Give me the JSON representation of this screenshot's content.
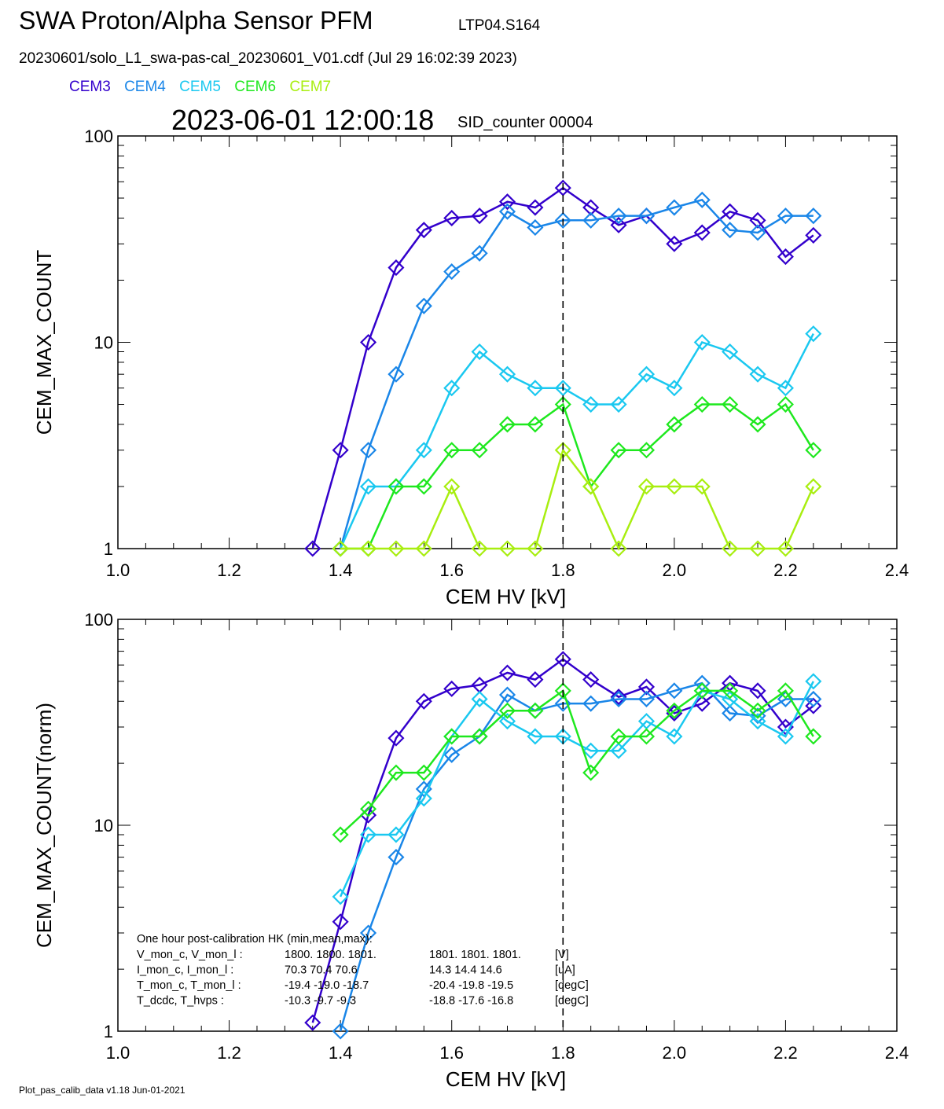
{
  "header": {
    "title": "SWA Proton/Alpha Sensor PFM",
    "limit": "LTP04.S164",
    "file": "20230601/solo_L1_swa-pas-cal_20230601_V01.cdf  (Jul 29 16:02:39 2023)",
    "time": "2023-06-01 12:00:18",
    "sid": "SID_counter 00004"
  },
  "legend": [
    {
      "name": "CEM3",
      "color": "#3300cc"
    },
    {
      "name": "CEM4",
      "color": "#1a86e8"
    },
    {
      "name": "CEM5",
      "color": "#1ac8f0"
    },
    {
      "name": "CEM6",
      "color": "#1ee81e"
    },
    {
      "name": "CEM7",
      "color": "#a8ee10"
    }
  ],
  "footer": "Plot_pas_calib_data v1.18 Jun-01-2021",
  "hk": {
    "title": "One hour post-calibration HK (min,mean,max):",
    "rows": [
      {
        "label": "V_mon_c, V_mon_l :",
        "c": "1800.  1800.  1801.",
        "l": "1801.  1801.  1801.",
        "unit": "[V]"
      },
      {
        "label": "I_mon_c,  I_mon_l :",
        "c": "70.3   70.4   70.6",
        "l": "14.3   14.4   14.6",
        "unit": "[uA]"
      },
      {
        "label": "T_mon_c, T_mon_l :",
        "c": "-19.4  -19.0  -18.7",
        "l": "-20.4  -19.8  -19.5",
        "unit": "[degC]"
      },
      {
        "label": "T_dcdc,    T_hvps :",
        "c": "-10.3   -9.7   -9.3",
        "l": "-18.8  -17.6  -16.8",
        "unit": "[degC]"
      }
    ]
  },
  "chart_data": [
    {
      "type": "line",
      "ylabel": "CEM_MAX_COUNT",
      "xlabel": "CEM HV [kV]",
      "xlim": [
        1.0,
        2.4
      ],
      "ylim": [
        1,
        100
      ],
      "yscale": "log",
      "xticks": [
        "1.0",
        "1.2",
        "1.4",
        "1.6",
        "1.8",
        "2.0",
        "2.2",
        "2.4"
      ],
      "yticks": [
        "1",
        "10",
        "100"
      ],
      "vline": 1.8,
      "marker": "diamond",
      "series": [
        {
          "name": "CEM3",
          "color": "#3300cc",
          "x": [
            1.35,
            1.4,
            1.45,
            1.5,
            1.55,
            1.6,
            1.65,
            1.7,
            1.75,
            1.8,
            1.85,
            1.9,
            1.95,
            2.0,
            2.05,
            2.1,
            2.15,
            2.2,
            2.25
          ],
          "y": [
            1,
            3,
            10,
            23,
            35,
            40,
            41,
            48,
            45,
            56,
            45,
            37,
            41,
            30,
            34,
            43,
            39,
            26,
            33
          ]
        },
        {
          "name": "CEM4",
          "color": "#1a86e8",
          "x": [
            1.4,
            1.45,
            1.5,
            1.55,
            1.6,
            1.65,
            1.7,
            1.75,
            1.8,
            1.85,
            1.9,
            1.95,
            2.0,
            2.05,
            2.1,
            2.15,
            2.2,
            2.25
          ],
          "y": [
            1,
            3,
            7,
            15,
            22,
            27,
            43,
            36,
            39,
            39,
            41,
            41,
            45,
            49,
            35,
            34,
            41,
            41
          ]
        },
        {
          "name": "CEM5",
          "color": "#1ac8f0",
          "x": [
            1.4,
            1.45,
            1.5,
            1.55,
            1.6,
            1.65,
            1.7,
            1.75,
            1.8,
            1.85,
            1.9,
            1.95,
            2.0,
            2.05,
            2.1,
            2.15,
            2.2,
            2.25
          ],
          "y": [
            1,
            2,
            2,
            3,
            6,
            9,
            7,
            6,
            6,
            5,
            5,
            7,
            6,
            10,
            9,
            7,
            6,
            11
          ]
        },
        {
          "name": "CEM6",
          "color": "#1ee81e",
          "x": [
            1.4,
            1.45,
            1.5,
            1.55,
            1.6,
            1.65,
            1.7,
            1.75,
            1.8,
            1.85,
            1.9,
            1.95,
            2.0,
            2.05,
            2.1,
            2.15,
            2.2,
            2.25
          ],
          "y": [
            1,
            1,
            2,
            2,
            3,
            3,
            4,
            4,
            5,
            2,
            3,
            3,
            4,
            5,
            5,
            4,
            5,
            3
          ]
        },
        {
          "name": "CEM7",
          "color": "#a8ee10",
          "x": [
            1.4,
            1.45,
            1.5,
            1.55,
            1.6,
            1.65,
            1.7,
            1.75,
            1.8,
            1.85,
            1.9,
            1.95,
            2.0,
            2.05,
            2.1,
            2.15,
            2.2,
            2.25
          ],
          "y": [
            1,
            1,
            1,
            1,
            2,
            1,
            1,
            1,
            3,
            2,
            1,
            2,
            2,
            2,
            1,
            1,
            1,
            2
          ]
        }
      ]
    },
    {
      "type": "line",
      "ylabel": "CEM_MAX_COUNT(norm)",
      "xlabel": "CEM HV [kV]",
      "xlim": [
        1.0,
        2.4
      ],
      "ylim": [
        1,
        100
      ],
      "yscale": "log",
      "xticks": [
        "1.0",
        "1.2",
        "1.4",
        "1.6",
        "1.8",
        "2.0",
        "2.2",
        "2.4"
      ],
      "yticks": [
        "1",
        "10",
        "100"
      ],
      "vline": 1.8,
      "marker": "diamond",
      "series": [
        {
          "name": "CEM3",
          "color": "#3300cc",
          "x": [
            1.35,
            1.4,
            1.45,
            1.5,
            1.55,
            1.6,
            1.65,
            1.7,
            1.75,
            1.8,
            1.85,
            1.9,
            1.95,
            2.0,
            2.05,
            2.1,
            2.15,
            2.2,
            2.25
          ],
          "y": [
            1.1,
            3.4,
            11.2,
            26.5,
            40,
            46,
            48,
            55,
            51,
            64,
            51,
            42,
            47,
            35,
            39,
            49,
            45,
            30,
            38
          ]
        },
        {
          "name": "CEM4",
          "color": "#1a86e8",
          "x": [
            1.4,
            1.45,
            1.5,
            1.55,
            1.6,
            1.65,
            1.7,
            1.75,
            1.8,
            1.85,
            1.9,
            1.95,
            2.0,
            2.05,
            2.1,
            2.15,
            2.2,
            2.25
          ],
          "y": [
            1,
            3,
            7,
            15,
            22,
            27,
            43,
            36,
            39,
            39,
            41,
            41,
            45,
            49,
            35,
            34,
            41,
            41
          ]
        },
        {
          "name": "CEM5",
          "color": "#1ac8f0",
          "x": [
            1.4,
            1.45,
            1.5,
            1.55,
            1.6,
            1.65,
            1.7,
            1.75,
            1.8,
            1.85,
            1.9,
            1.95,
            2.0,
            2.05,
            2.1,
            2.15,
            2.2,
            2.25
          ],
          "y": [
            4.5,
            9,
            9,
            13.5,
            27,
            41,
            32,
            27,
            27,
            23,
            23,
            32,
            27,
            45,
            41,
            32,
            27,
            50
          ]
        },
        {
          "name": "CEM6",
          "color": "#1ee81e",
          "x": [
            1.4,
            1.45,
            1.5,
            1.55,
            1.6,
            1.65,
            1.7,
            1.75,
            1.8,
            1.85,
            1.9,
            1.95,
            2.0,
            2.05,
            2.1,
            2.15,
            2.2,
            2.25
          ],
          "y": [
            9,
            12,
            18,
            18,
            27,
            27,
            36,
            36,
            45,
            18,
            27,
            27,
            36,
            45,
            45,
            36,
            45,
            27
          ]
        }
      ]
    }
  ]
}
